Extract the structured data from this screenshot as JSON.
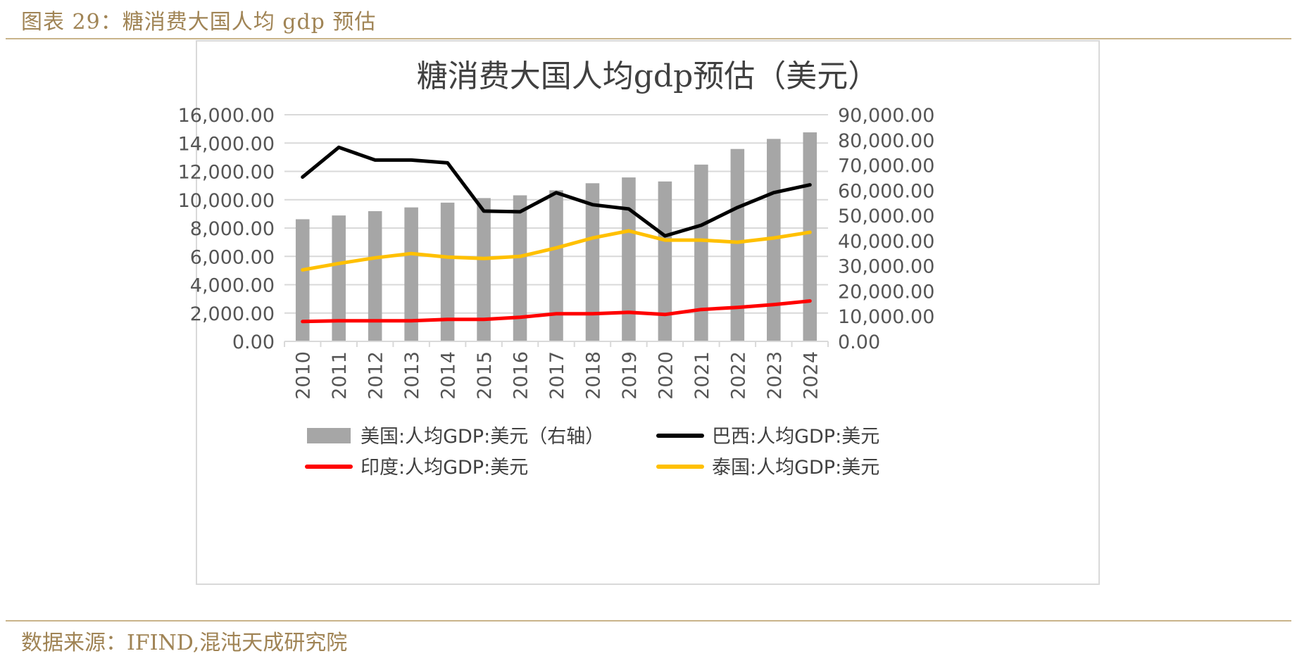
{
  "header": {
    "title": "图表 29：糖消费大国人均 gdp 预估"
  },
  "source": {
    "text": "数据来源：IFIND,混沌天成研究院"
  },
  "colors": {
    "bar": "#a6a6a6",
    "brazil": "#000000",
    "india": "#ff0000",
    "thailand": "#ffc000",
    "header": "#a08455",
    "grid": "#d9d9d9"
  },
  "chart_data": {
    "type": "bar",
    "title": "糖消费大国人均gdp预估（美元）",
    "categories": [
      "2010",
      "2011",
      "2012",
      "2013",
      "2014",
      "2015",
      "2016",
      "2017",
      "2018",
      "2019",
      "2020",
      "2021",
      "2022",
      "2023",
      "2024"
    ],
    "y_left": {
      "min": 0,
      "max": 16000,
      "step": 2000,
      "tick_labels": [
        "0.00",
        "2,000.00",
        "4,000.00",
        "6,000.00",
        "8,000.00",
        "10,000.00",
        "12,000.00",
        "14,000.00",
        "16,000.00"
      ]
    },
    "y_right": {
      "min": 0,
      "max": 90000,
      "step": 10000,
      "tick_labels": [
        "0.00",
        "10,000.00",
        "20,000.00",
        "30,000.00",
        "40,000.00",
        "50,000.00",
        "60,000.00",
        "70,000.00",
        "80,000.00",
        "90,000.00"
      ]
    },
    "series": [
      {
        "name": "美国:人均GDP:美元（右轴）",
        "type": "bar",
        "axis": "right",
        "values": [
          48500,
          50000,
          51700,
          53200,
          55100,
          56900,
          58000,
          60000,
          62800,
          65100,
          63500,
          70200,
          76400,
          80400,
          83000
        ]
      },
      {
        "name": "巴西:人均GDP:美元",
        "type": "line",
        "axis": "left",
        "color_key": "brazil",
        "values": [
          11600,
          13700,
          12800,
          12800,
          12600,
          9200,
          9150,
          10500,
          9650,
          9350,
          7450,
          8200,
          9450,
          10500,
          11050
        ]
      },
      {
        "name": "印度:人均GDP:美元",
        "type": "line",
        "axis": "left",
        "color_key": "india",
        "values": [
          1400,
          1450,
          1450,
          1450,
          1550,
          1550,
          1700,
          1950,
          1950,
          2050,
          1900,
          2250,
          2400,
          2600,
          2850
        ]
      },
      {
        "name": "泰国:人均GDP:美元",
        "type": "line",
        "axis": "left",
        "color_key": "thailand",
        "values": [
          5050,
          5500,
          5900,
          6200,
          5950,
          5850,
          6000,
          6600,
          7300,
          7800,
          7150,
          7150,
          7000,
          7300,
          7700
        ]
      }
    ]
  }
}
